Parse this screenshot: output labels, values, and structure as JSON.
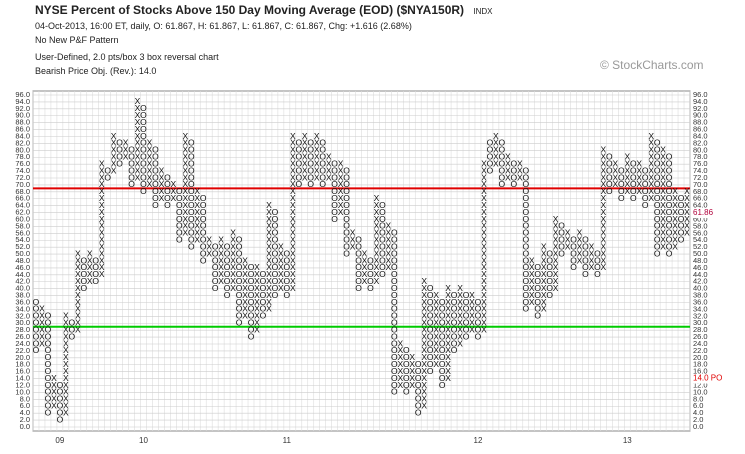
{
  "chart_data": {
    "type": "point-and-figure",
    "title": "NYSE Percent of Stocks Above 150 Day Moving Average (EOD) ($NYA150R)",
    "exchange": "INDX",
    "info_lines": [
      "04-Oct-2013, 16:00 ET, daily, O: 61.867, H: 61.867, L: 61.867, C: 61.867, Chg: +1.616 (2.68%)",
      "No New P&F Pattern",
      "User-Defined, 2.0 pts/box 3 box reversal chart",
      "Bearish Price Obj. (Rev.): 14.0"
    ],
    "watermark": "© StockCharts.com",
    "box_size": 2,
    "ylim": [
      0,
      96
    ],
    "yticks": [
      {
        "value": 0,
        "label": "0.0"
      },
      {
        "value": 2,
        "label": "2.0"
      },
      {
        "value": 4,
        "label": "4.0"
      },
      {
        "value": 6,
        "label": "6.0"
      },
      {
        "value": 8,
        "label": "8.0"
      },
      {
        "value": 10,
        "label": "10.0"
      },
      {
        "value": 12,
        "label": "12.0"
      },
      {
        "value": 14,
        "label": "14.0"
      },
      {
        "value": 16,
        "label": "16.0"
      },
      {
        "value": 18,
        "label": "18.0"
      },
      {
        "value": 20,
        "label": "20.0"
      },
      {
        "value": 22,
        "label": "22.0"
      },
      {
        "value": 24,
        "label": "24.0"
      },
      {
        "value": 26,
        "label": "26.0"
      },
      {
        "value": 28,
        "label": "28.0"
      },
      {
        "value": 30,
        "label": "30.0"
      },
      {
        "value": 32,
        "label": "32.0"
      },
      {
        "value": 34,
        "label": "34.0"
      },
      {
        "value": 36,
        "label": "36.0"
      },
      {
        "value": 38,
        "label": "38.0"
      },
      {
        "value": 40,
        "label": "40.0"
      },
      {
        "value": 42,
        "label": "42.0"
      },
      {
        "value": 44,
        "label": "44.0"
      },
      {
        "value": 46,
        "label": "46.0"
      },
      {
        "value": 48,
        "label": "48.0"
      },
      {
        "value": 50,
        "label": "50.0"
      },
      {
        "value": 52,
        "label": "52.0"
      },
      {
        "value": 54,
        "label": "54.0"
      },
      {
        "value": 56,
        "label": "56.0"
      },
      {
        "value": 58,
        "label": "58.0"
      },
      {
        "value": 60,
        "label": "60.0"
      },
      {
        "value": 62,
        "label": "62.0"
      },
      {
        "value": 64,
        "label": "64.0"
      },
      {
        "value": 66,
        "label": "66.0"
      },
      {
        "value": 68,
        "label": "68.0"
      },
      {
        "value": 70,
        "label": "70.0"
      },
      {
        "value": 72,
        "label": "72.0"
      },
      {
        "value": 74,
        "label": "74.0"
      },
      {
        "value": 76,
        "label": "76.0"
      },
      {
        "value": 78,
        "label": "78.0"
      },
      {
        "value": 80,
        "label": "80.0"
      },
      {
        "value": 82,
        "label": "82.0"
      },
      {
        "value": 84,
        "label": "84.0"
      },
      {
        "value": 86,
        "label": "86.0"
      },
      {
        "value": 88,
        "label": "88.0"
      },
      {
        "value": 90,
        "label": "90.0"
      },
      {
        "value": 92,
        "label": "92.0"
      },
      {
        "value": 94,
        "label": "94.0"
      },
      {
        "value": 96,
        "label": "96.0"
      }
    ],
    "grid": true,
    "year_labels": [
      {
        "label": "09",
        "column": 4
      },
      {
        "label": "10",
        "column": 18
      },
      {
        "label": "11",
        "column": 42
      },
      {
        "label": "12",
        "column": 74
      },
      {
        "label": "13",
        "column": 99
      }
    ],
    "lines": [
      {
        "value": 69,
        "color": "#e00000"
      },
      {
        "value": 29,
        "color": "#00cc00"
      }
    ],
    "last_price": {
      "value": 61.86,
      "label": "61.86",
      "color": "#b0003a"
    },
    "price_objective": {
      "value": 14,
      "label": "14.0 PO",
      "color": "#e00000"
    },
    "columns": [
      {
        "kind": "O",
        "low": 22,
        "high": 36
      },
      {
        "kind": "X",
        "low": 24,
        "high": 34
      },
      {
        "kind": "O",
        "low": 4,
        "high": 32
      },
      {
        "kind": "X",
        "low": 6,
        "high": 14
      },
      {
        "kind": "O",
        "low": 2,
        "high": 12
      },
      {
        "kind": "X",
        "low": 4,
        "high": 32
      },
      {
        "kind": "O",
        "low": 26,
        "high": 30
      },
      {
        "kind": "X",
        "low": 28,
        "high": 50
      },
      {
        "kind": "O",
        "low": 40,
        "high": 48
      },
      {
        "kind": "X",
        "low": 42,
        "high": 50
      },
      {
        "kind": "O",
        "low": 42,
        "high": 48
      },
      {
        "kind": "X",
        "low": 44,
        "high": 76
      },
      {
        "kind": "O",
        "low": 72,
        "high": 74
      },
      {
        "kind": "X",
        "low": 74,
        "high": 84
      },
      {
        "kind": "O",
        "low": 76,
        "high": 82
      },
      {
        "kind": "X",
        "low": 78,
        "high": 82
      },
      {
        "kind": "O",
        "low": 70,
        "high": 80
      },
      {
        "kind": "X",
        "low": 72,
        "high": 94
      },
      {
        "kind": "O",
        "low": 68,
        "high": 92
      },
      {
        "kind": "X",
        "low": 70,
        "high": 82
      },
      {
        "kind": "O",
        "low": 64,
        "high": 80
      },
      {
        "kind": "X",
        "low": 66,
        "high": 74
      },
      {
        "kind": "O",
        "low": 64,
        "high": 72
      },
      {
        "kind": "X",
        "low": 66,
        "high": 70
      },
      {
        "kind": "O",
        "low": 54,
        "high": 68
      },
      {
        "kind": "X",
        "low": 56,
        "high": 84
      },
      {
        "kind": "O",
        "low": 52,
        "high": 82
      },
      {
        "kind": "X",
        "low": 54,
        "high": 68
      },
      {
        "kind": "O",
        "low": 48,
        "high": 66
      },
      {
        "kind": "X",
        "low": 50,
        "high": 54
      },
      {
        "kind": "O",
        "low": 40,
        "high": 52
      },
      {
        "kind": "X",
        "low": 42,
        "high": 54
      },
      {
        "kind": "O",
        "low": 38,
        "high": 52
      },
      {
        "kind": "X",
        "low": 40,
        "high": 56
      },
      {
        "kind": "O",
        "low": 30,
        "high": 54
      },
      {
        "kind": "X",
        "low": 32,
        "high": 48
      },
      {
        "kind": "O",
        "low": 26,
        "high": 46
      },
      {
        "kind": "X",
        "low": 28,
        "high": 46
      },
      {
        "kind": "O",
        "low": 32,
        "high": 44
      },
      {
        "kind": "X",
        "low": 34,
        "high": 64
      },
      {
        "kind": "O",
        "low": 38,
        "high": 62
      },
      {
        "kind": "X",
        "low": 40,
        "high": 52
      },
      {
        "kind": "O",
        "low": 38,
        "high": 50
      },
      {
        "kind": "X",
        "low": 40,
        "high": 84
      },
      {
        "kind": "O",
        "low": 70,
        "high": 82
      },
      {
        "kind": "X",
        "low": 72,
        "high": 84
      },
      {
        "kind": "O",
        "low": 70,
        "high": 82
      },
      {
        "kind": "X",
        "low": 72,
        "high": 84
      },
      {
        "kind": "O",
        "low": 70,
        "high": 82
      },
      {
        "kind": "X",
        "low": 72,
        "high": 78
      },
      {
        "kind": "O",
        "low": 60,
        "high": 76
      },
      {
        "kind": "X",
        "low": 62,
        "high": 76
      },
      {
        "kind": "O",
        "low": 50,
        "high": 74
      },
      {
        "kind": "X",
        "low": 52,
        "high": 56
      },
      {
        "kind": "O",
        "low": 40,
        "high": 54
      },
      {
        "kind": "X",
        "low": 42,
        "high": 50
      },
      {
        "kind": "O",
        "low": 40,
        "high": 48
      },
      {
        "kind": "X",
        "low": 42,
        "high": 66
      },
      {
        "kind": "O",
        "low": 44,
        "high": 64
      },
      {
        "kind": "X",
        "low": 46,
        "high": 58
      },
      {
        "kind": "O",
        "low": 10,
        "high": 56
      },
      {
        "kind": "X",
        "low": 12,
        "high": 24
      },
      {
        "kind": "O",
        "low": 10,
        "high": 22
      },
      {
        "kind": "X",
        "low": 12,
        "high": 20
      },
      {
        "kind": "O",
        "low": 4,
        "high": 18
      },
      {
        "kind": "X",
        "low": 6,
        "high": 42
      },
      {
        "kind": "O",
        "low": 16,
        "high": 40
      },
      {
        "kind": "X",
        "low": 18,
        "high": 38
      },
      {
        "kind": "O",
        "low": 12,
        "high": 36
      },
      {
        "kind": "X",
        "low": 14,
        "high": 40
      },
      {
        "kind": "O",
        "low": 22,
        "high": 38
      },
      {
        "kind": "X",
        "low": 24,
        "high": 40
      },
      {
        "kind": "O",
        "low": 26,
        "high": 38
      },
      {
        "kind": "X",
        "low": 28,
        "high": 38
      },
      {
        "kind": "O",
        "low": 26,
        "high": 36
      },
      {
        "kind": "X",
        "low": 28,
        "high": 76
      },
      {
        "kind": "O",
        "low": 74,
        "high": 82
      },
      {
        "kind": "X",
        "low": 76,
        "high": 84
      },
      {
        "kind": "O",
        "low": 70,
        "high": 82
      },
      {
        "kind": "X",
        "low": 72,
        "high": 78
      },
      {
        "kind": "O",
        "low": 70,
        "high": 76
      },
      {
        "kind": "X",
        "low": 72,
        "high": 76
      },
      {
        "kind": "O",
        "low": 34,
        "high": 74
      },
      {
        "kind": "X",
        "low": 36,
        "high": 48
      },
      {
        "kind": "O",
        "low": 32,
        "high": 46
      },
      {
        "kind": "X",
        "low": 34,
        "high": 52
      },
      {
        "kind": "O",
        "low": 38,
        "high": 50
      },
      {
        "kind": "X",
        "low": 40,
        "high": 60
      },
      {
        "kind": "O",
        "low": 50,
        "high": 58
      },
      {
        "kind": "X",
        "low": 52,
        "high": 56
      },
      {
        "kind": "O",
        "low": 46,
        "high": 54
      },
      {
        "kind": "X",
        "low": 48,
        "high": 56
      },
      {
        "kind": "O",
        "low": 44,
        "high": 54
      },
      {
        "kind": "X",
        "low": 46,
        "high": 52
      },
      {
        "kind": "O",
        "low": 44,
        "high": 50
      },
      {
        "kind": "X",
        "low": 46,
        "high": 80
      },
      {
        "kind": "O",
        "low": 68,
        "high": 78
      },
      {
        "kind": "X",
        "low": 70,
        "high": 76
      },
      {
        "kind": "O",
        "low": 66,
        "high": 74
      },
      {
        "kind": "X",
        "low": 68,
        "high": 78
      },
      {
        "kind": "O",
        "low": 66,
        "high": 76
      },
      {
        "kind": "X",
        "low": 68,
        "high": 76
      },
      {
        "kind": "O",
        "low": 64,
        "high": 74
      },
      {
        "kind": "X",
        "low": 66,
        "high": 84
      },
      {
        "kind": "O",
        "low": 50,
        "high": 82
      },
      {
        "kind": "X",
        "low": 52,
        "high": 80
      },
      {
        "kind": "O",
        "low": 50,
        "high": 78
      },
      {
        "kind": "X",
        "low": 52,
        "high": 68
      },
      {
        "kind": "O",
        "low": 54,
        "high": 66
      },
      {
        "kind": "X",
        "low": 56,
        "high": 68
      }
    ]
  }
}
